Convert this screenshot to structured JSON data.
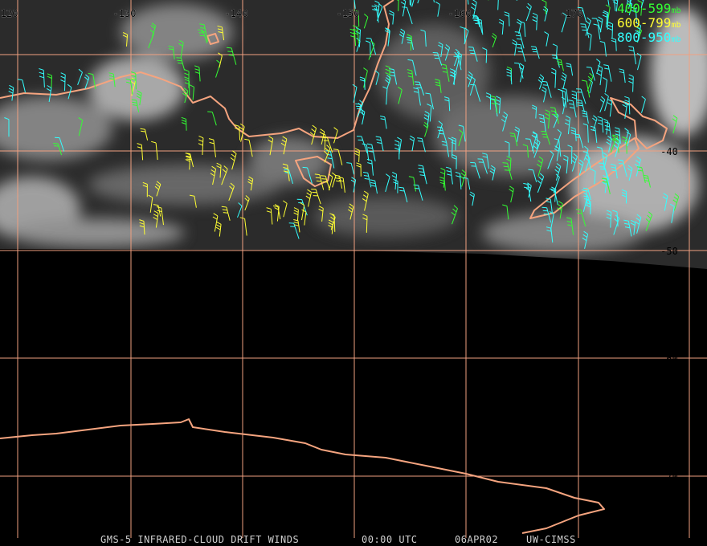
{
  "longitude_labels": [
    "-120",
    "-130",
    "-140",
    "-150",
    "-160",
    "-170"
  ],
  "latitude_labels": [
    "-40",
    "-50",
    "-60",
    "-70"
  ],
  "legend": [
    {
      "label": "400-599",
      "unit": "mb",
      "color": "#33ff33"
    },
    {
      "label": "600-799",
      "unit": "mb",
      "color": "#ffff33"
    },
    {
      "label": "800-950",
      "unit": "mb",
      "color": "#33ffff"
    }
  ],
  "footer": [
    "GMS-5 INFRARED-CLOUD DRIFT WINDS",
    "00:00 UTC",
    "06APR02",
    "UW-CIMSS"
  ]
}
